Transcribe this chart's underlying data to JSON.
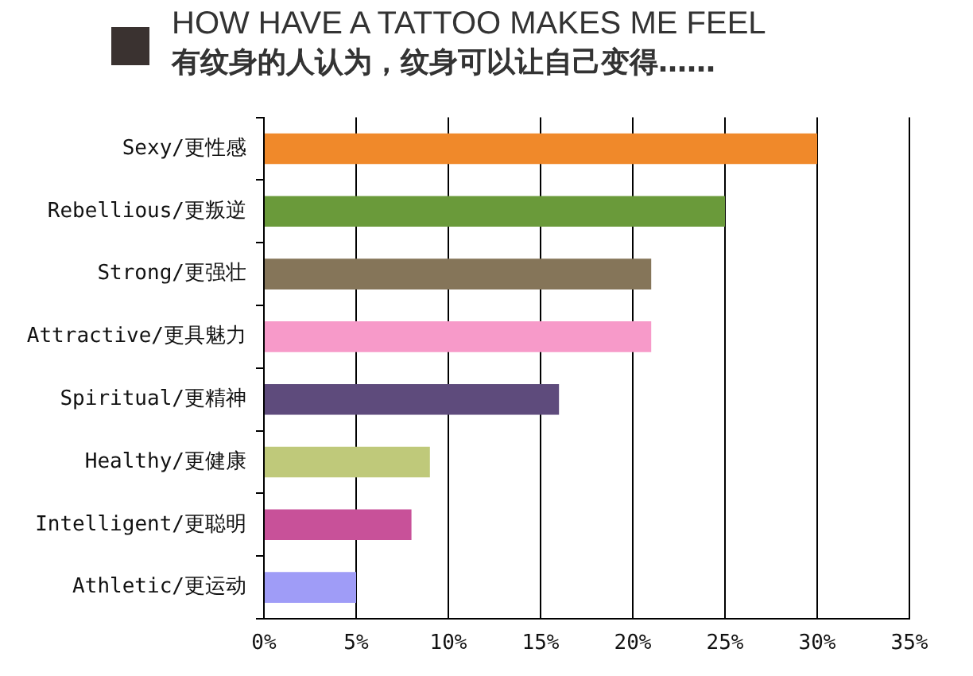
{
  "chart_data": {
    "type": "bar",
    "orientation": "horizontal",
    "title": "HOW HAVE A TATTOO MAKES ME FEEL",
    "subtitle": "有纹身的人认为，纹身可以让自己变得……",
    "categories": [
      "Sexy/更性感",
      "Rebellious/更叛逆",
      "Strong/更强壮",
      "Attractive/更具魅力",
      "Spiritual/更精神",
      "Healthy/更健康",
      "Intelligent/更聪明",
      "Athletic/更运动"
    ],
    "values": [
      30,
      25,
      21,
      21,
      16,
      9,
      8,
      5
    ],
    "colors": [
      "#f0892a",
      "#6a9a3a",
      "#857559",
      "#f79ac9",
      "#5e4b7c",
      "#bfc97a",
      "#c85199",
      "#9f9cf7"
    ],
    "xlim": [
      0,
      35
    ],
    "xticks": [
      {
        "value": 0,
        "label": "0%"
      },
      {
        "value": 5,
        "label": "5%"
      },
      {
        "value": 10,
        "label": "10%"
      },
      {
        "value": 15,
        "label": "15%"
      },
      {
        "value": 20,
        "label": "20%"
      },
      {
        "value": 25,
        "label": "25%"
      },
      {
        "value": 30,
        "label": "30%"
      },
      {
        "value": 35,
        "label": "35%"
      }
    ],
    "grid": "x"
  }
}
